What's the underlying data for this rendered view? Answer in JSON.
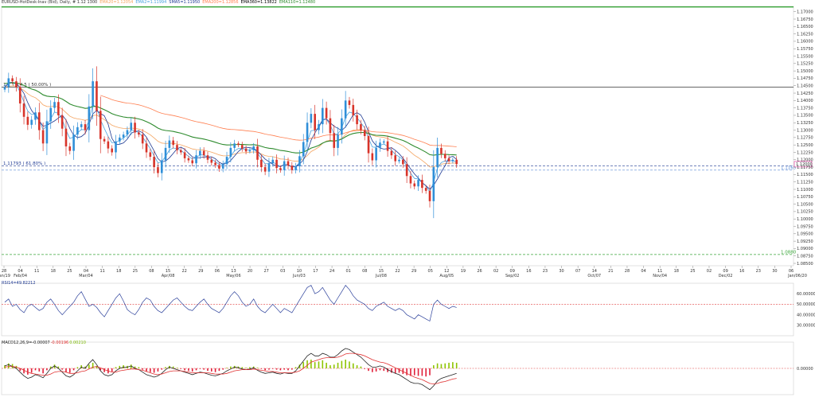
{
  "header": {
    "symbol": "EURUSD-HotDesk-Inav (Bid), Daily, # 1.12 1300",
    "indicators": [
      {
        "text": "EMA20=1.12054",
        "color": "#f4a460"
      },
      {
        "text": "EMA2=1.11994",
        "color": "#4aa3df"
      },
      {
        "text": "SMA5=1.11950",
        "color": "#1f3a93"
      },
      {
        "text": "EMA200=1.12856",
        "color": "#ff7f50"
      },
      {
        "text": "EMA360=1.13822",
        "color": "#000000"
      },
      {
        "text": "EMA110=1.12480",
        "color": "#2e8b2e"
      }
    ],
    "rsi_label": "RSI14=49.82212",
    "macd_label_parts": [
      {
        "text": "MACD12,26,9=-0.00007",
        "color": "#222222"
      },
      {
        "text": "-0.00196",
        "color": "#e03030"
      },
      {
        "text": "0.00210",
        "color": "#7cbb00"
      }
    ]
  },
  "chart_data": [
    {
      "type": "candlestick",
      "title": "",
      "y_ticks": [
        "1.17000",
        "1.16750",
        "1.16500",
        "1.16250",
        "1.16000",
        "1.15750",
        "1.15500",
        "1.15250",
        "1.15000",
        "1.14750",
        "1.14500",
        "1.14250",
        "1.14000",
        "1.13750",
        "1.13500",
        "1.13250",
        "1.13000",
        "1.12750",
        "1.12500",
        "1.12250",
        "1.12000",
        "1.11750",
        "1.11500",
        "1.11250",
        "1.11000",
        "1.10750",
        "1.10500",
        "1.10250",
        "1.10000",
        "1.09750",
        "1.09500",
        "1.09250",
        "1.09000",
        "1.08750",
        "1.08500"
      ],
      "ylim": [
        1.0842,
        1.1718
      ],
      "x_ticks": [
        "28",
        "04",
        "11",
        "18",
        "25",
        "04",
        "11",
        "18",
        "25",
        "08",
        "15",
        "22",
        "29",
        "06",
        "13",
        "20",
        "27",
        "03",
        "10",
        "17",
        "24",
        "01",
        "08",
        "15",
        "22",
        "29",
        "05",
        "12",
        "19",
        "26",
        "02",
        "09",
        "16",
        "23",
        "30",
        "07",
        "14",
        "21",
        "28",
        "04",
        "11",
        "18",
        "25",
        "02",
        "09",
        "16",
        "23",
        "30",
        "06"
      ],
      "x_month_labels": [
        {
          "index": 0,
          "text": "Jan/19"
        },
        {
          "index": 1,
          "text": "Feb/04"
        },
        {
          "index": 5,
          "text": "Mar/04"
        },
        {
          "index": 10,
          "text": "Apr/08"
        },
        {
          "index": 14,
          "text": "May/06"
        },
        {
          "index": 18,
          "text": "Jun/03"
        },
        {
          "index": 23,
          "text": "Jul/08"
        },
        {
          "index": 27,
          "text": "Aug/05"
        },
        {
          "index": 31,
          "text": "Sep/02"
        },
        {
          "index": 36,
          "text": "Oct/07"
        },
        {
          "index": 40,
          "text": "Nov/04"
        },
        {
          "index": 44,
          "text": "Dec/02"
        },
        {
          "index": 49,
          "text": "Jan/06/20"
        }
      ],
      "closes": [
        1.1445,
        1.1475,
        1.1465,
        1.1445,
        1.139,
        1.1345,
        1.1318,
        1.1335,
        1.136,
        1.13,
        1.1255,
        1.133,
        1.1375,
        1.1395,
        1.135,
        1.1305,
        1.1245,
        1.123,
        1.1285,
        1.131,
        1.132,
        1.13,
        1.138,
        1.1465,
        1.1365,
        1.127,
        1.1262,
        1.1238,
        1.1225,
        1.1262,
        1.1275,
        1.1285,
        1.13,
        1.1325,
        1.1292,
        1.1285,
        1.1255,
        1.1225,
        1.121,
        1.1175,
        1.1155,
        1.1198,
        1.124,
        1.1265,
        1.125,
        1.1232,
        1.1225,
        1.1205,
        1.1198,
        1.1188,
        1.1215,
        1.123,
        1.1215,
        1.12,
        1.119,
        1.1182,
        1.117,
        1.1185,
        1.121,
        1.124,
        1.1255,
        1.125,
        1.1238,
        1.1228,
        1.1232,
        1.1245,
        1.12,
        1.1175,
        1.116,
        1.1188,
        1.12,
        1.1172,
        1.1165,
        1.1195,
        1.118,
        1.1165,
        1.1178,
        1.1212,
        1.126,
        1.1325,
        1.1355,
        1.13,
        1.132,
        1.1375,
        1.134,
        1.129,
        1.124,
        1.1285,
        1.134,
        1.14,
        1.1385,
        1.135,
        1.132,
        1.13,
        1.128,
        1.1222,
        1.1198,
        1.124,
        1.1258,
        1.1262,
        1.123,
        1.1215,
        1.1195,
        1.12,
        1.1185,
        1.1145,
        1.112,
        1.111,
        1.1132,
        1.1105,
        1.1095,
        1.106,
        1.1175,
        1.124,
        1.122,
        1.1205,
        1.1195,
        1.12,
        1.1185
      ],
      "overlays": [
        {
          "name": "EMA20",
          "color": "#f4a460"
        },
        {
          "name": "EMA2",
          "color": "#4aa3df"
        },
        {
          "name": "SMA5",
          "color": "#1f3a93"
        },
        {
          "name": "EMA200",
          "color": "#ff7f50"
        },
        {
          "name": "EMA110",
          "color": "#2e8b2e"
        }
      ],
      "horizontal_lines": [
        {
          "value": 1.1445,
          "label": "1.1 1 4 4 5 ( 50.00% )",
          "color": "#333333"
        },
        {
          "value": 1.1179,
          "label": "1.11793 ( 61.80% )",
          "color": "#1f3a93"
        },
        {
          "value": 1.1165,
          "label": "1.1165",
          "color": "#5b8bd6"
        },
        {
          "value": 1.088,
          "label": "1.0880",
          "color": "#3aa63a"
        }
      ],
      "price_tag": "1.12000"
    },
    {
      "type": "line",
      "name": "RSI14",
      "ylim": [
        20,
        70
      ],
      "y_ticks": [
        "60.00000",
        "50.00000",
        "40.00000",
        "30.00000"
      ],
      "reference_level": 49.82,
      "values": [
        52,
        55,
        48,
        50,
        45,
        42,
        48,
        50,
        47,
        44,
        46,
        52,
        55,
        50,
        44,
        40,
        44,
        48,
        52,
        58,
        62,
        55,
        48,
        50,
        47,
        42,
        38,
        44,
        50,
        56,
        60,
        53,
        45,
        42,
        40,
        45,
        52,
        56,
        54,
        48,
        44,
        42,
        46,
        50,
        54,
        56,
        52,
        48,
        45,
        44,
        48,
        52,
        55,
        50,
        46,
        44,
        42,
        46,
        52,
        58,
        62,
        58,
        52,
        48,
        50,
        55,
        48,
        44,
        42,
        46,
        50,
        46,
        42,
        46,
        44,
        42,
        48,
        54,
        60,
        66,
        68,
        60,
        62,
        66,
        60,
        54,
        50,
        56,
        62,
        68,
        64,
        58,
        54,
        52,
        50,
        46,
        44,
        48,
        50,
        52,
        48,
        46,
        44,
        46,
        44,
        40,
        38,
        36,
        40,
        38,
        36,
        34,
        50,
        54,
        50,
        48,
        46,
        48,
        47
      ]
    },
    {
      "type": "bar+line",
      "name": "MACD",
      "y_ticks": [
        "0.00000"
      ],
      "histogram": [
        0.0005,
        0.0008,
        0.0007,
        0.0004,
        -0.0004,
        -0.0008,
        -0.001,
        -0.0007,
        -0.0003,
        -0.0005,
        -0.0008,
        -0.0003,
        0.0003,
        0.0006,
        0.0003,
        -0.0002,
        -0.0006,
        -0.0007,
        -0.0003,
        0.0002,
        0.0005,
        0.0003,
        0.0006,
        0.0009,
        0.0004,
        -0.0003,
        -0.0006,
        -0.0008,
        -0.0005,
        0.0002,
        0.0004,
        0.0005,
        0.0004,
        0.0006,
        0.0003,
        0.0002,
        -0.0002,
        -0.0005,
        -0.0006,
        -0.0007,
        -0.0005,
        -0.0002,
        0.0002,
        0.0004,
        0.0003,
        0.0001,
        -0.0001,
        -0.0003,
        -0.0004,
        -0.0005,
        -0.0003,
        -0.0001,
        -0.0002,
        -0.0004,
        -0.0005,
        -0.0006,
        -0.0004,
        -0.0002,
        0.0001,
        0.0003,
        0.0004,
        0.0003,
        0.0002,
        0.0001,
        0.0002,
        0.0003,
        0.0001,
        -0.0001,
        -0.0003,
        -0.0002,
        -0.0001,
        -0.0002,
        -0.0003,
        -0.0002,
        -0.0003,
        -0.0002,
        0.0002,
        0.0006,
        0.001,
        0.0013,
        0.0014,
        0.001,
        0.0011,
        0.0013,
        0.0009,
        0.0005,
        0.0006,
        0.0009,
        0.0012,
        0.0014,
        0.0011,
        0.0008,
        0.0005,
        0.0003,
        -0.0001,
        -0.0004,
        -0.0006,
        -0.0005,
        -0.0003,
        -0.0004,
        -0.0006,
        -0.0007,
        -0.0008,
        -0.0007,
        -0.0009,
        -0.0011,
        -0.0012,
        -0.0011,
        -0.0012,
        -0.0012,
        -0.0013,
        -0.0011,
        0.0005,
        0.0008,
        0.0007,
        0.0008,
        0.0009,
        0.001,
        0.0009
      ],
      "macd_line": [
        0.0004,
        0.0006,
        0.0003,
        0.0,
        -0.0006,
        -0.0012,
        -0.0016,
        -0.0014,
        -0.001,
        -0.0012,
        -0.0015,
        -0.0008,
        0.0,
        0.0004,
        0.0,
        -0.0006,
        -0.0012,
        -0.0014,
        -0.001,
        -0.0004,
        0.0002,
        0.0,
        0.0008,
        0.0014,
        0.0006,
        -0.0004,
        -0.001,
        -0.0012,
        -0.001,
        -0.0004,
        0.0,
        0.0002,
        0.0002,
        0.0004,
        0.0,
        -0.0002,
        -0.0006,
        -0.001,
        -0.0012,
        -0.0014,
        -0.0012,
        -0.0008,
        -0.0002,
        0.0002,
        0.0,
        -0.0002,
        -0.0004,
        -0.0006,
        -0.0008,
        -0.001,
        -0.0008,
        -0.0006,
        -0.0007,
        -0.0009,
        -0.0011,
        -0.0012,
        -0.001,
        -0.0008,
        -0.0004,
        -0.0001,
        0.0002,
        0.0001,
        -0.0001,
        -0.0002,
        -0.0001,
        0.0001,
        -0.0003,
        -0.0006,
        -0.0008,
        -0.0007,
        -0.0006,
        -0.0008,
        -0.0009,
        -0.0007,
        -0.0008,
        -0.0008,
        -0.0004,
        0.0004,
        0.0012,
        0.002,
        0.0024,
        0.002,
        0.002,
        0.0024,
        0.0022,
        0.0018,
        0.0018,
        0.0022,
        0.0028,
        0.0032,
        0.003,
        0.0026,
        0.0022,
        0.0018,
        0.0012,
        0.0006,
        0.0002,
        0.0002,
        0.0004,
        0.0002,
        -0.0002,
        -0.0005,
        -0.0008,
        -0.001,
        -0.0014,
        -0.0018,
        -0.0022,
        -0.0024,
        -0.0024,
        -0.0026,
        -0.003,
        -0.0034,
        -0.0028,
        -0.002,
        -0.0016,
        -0.0014,
        -0.0012,
        -0.001,
        -0.0008
      ],
      "signal_line": [
        0.0002,
        0.0003,
        0.0003,
        0.0002,
        0.0,
        -0.0003,
        -0.0006,
        -0.0008,
        -0.0009,
        -0.001,
        -0.0011,
        -0.0011,
        -0.0009,
        -0.0006,
        -0.0005,
        -0.0005,
        -0.0006,
        -0.0008,
        -0.0008,
        -0.0007,
        -0.0005,
        -0.0004,
        -0.0001,
        0.0002,
        0.0003,
        0.0001,
        -0.0002,
        -0.0004,
        -0.0006,
        -0.0006,
        -0.0004,
        -0.0003,
        -0.0002,
        -0.0001,
        -0.0001,
        -0.0002,
        -0.0003,
        -0.0005,
        -0.0007,
        -0.0009,
        -0.001,
        -0.0009,
        -0.0007,
        -0.0005,
        -0.0004,
        -0.0004,
        -0.0004,
        -0.0005,
        -0.0006,
        -0.0007,
        -0.0007,
        -0.0007,
        -0.0007,
        -0.0007,
        -0.0008,
        -0.0009,
        -0.0009,
        -0.0009,
        -0.0008,
        -0.0006,
        -0.0004,
        -0.0003,
        -0.0002,
        -0.0002,
        -0.0002,
        -0.0001,
        -0.0002,
        -0.0003,
        -0.0004,
        -0.0005,
        -0.0005,
        -0.0006,
        -0.0007,
        -0.0007,
        -0.0007,
        -0.0007,
        -0.0006,
        -0.0004,
        0.0,
        0.0005,
        0.001,
        0.0012,
        0.0014,
        0.0016,
        0.0017,
        0.0017,
        0.0017,
        0.0018,
        0.002,
        0.0023,
        0.0024,
        0.0024,
        0.0023,
        0.0022,
        0.002,
        0.0017,
        0.0014,
        0.0012,
        0.001,
        0.0009,
        0.0007,
        0.0004,
        0.0001,
        -0.0002,
        -0.0005,
        -0.0008,
        -0.0011,
        -0.0014,
        -0.0016,
        -0.0018,
        -0.0021,
        -0.0024,
        -0.0025,
        -0.0024,
        -0.0022,
        -0.0021,
        -0.0019,
        -0.0017,
        -0.0016
      ],
      "ylim": [
        -0.0042,
        0.0042
      ]
    }
  ]
}
